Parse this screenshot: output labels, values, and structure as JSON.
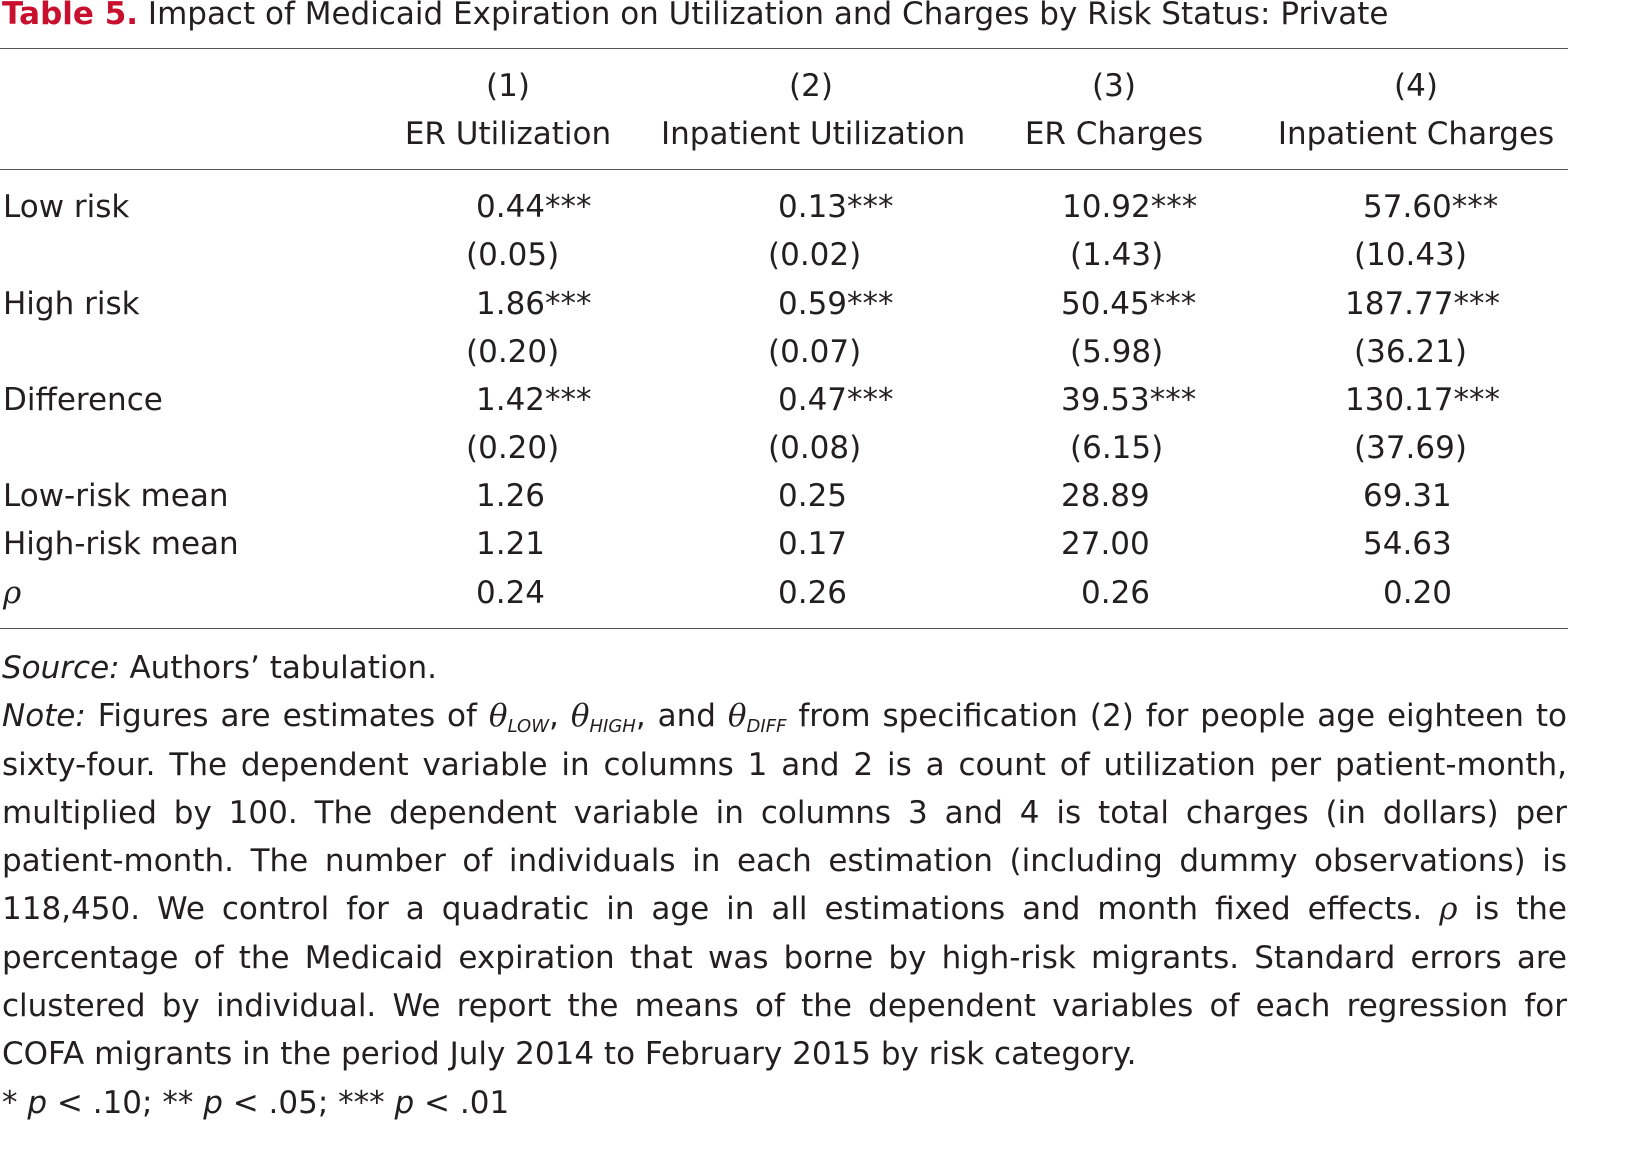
{
  "caption": {
    "label": "Table 5.",
    "title": "Impact of Medicaid Expiration on Utilization and Charges by Risk Status: Private"
  },
  "columns": [
    {
      "number": "(1)",
      "name": "ER Utilization"
    },
    {
      "number": "(2)",
      "name": "Inpatient Utilization"
    },
    {
      "number": "(3)",
      "name": "ER Charges"
    },
    {
      "number": "(4)",
      "name": "Inpatient Charges"
    }
  ],
  "rows": [
    {
      "label": "Low risk",
      "values": [
        "0.44***",
        "0.13***",
        "10.92***",
        "57.60***"
      ]
    },
    {
      "label": "",
      "values": [
        "(0.05)",
        "(0.02)",
        "(1.43)",
        "(10.43)"
      ]
    },
    {
      "label": "High risk",
      "values": [
        "1.86***",
        "0.59***",
        "50.45***",
        "187.77***"
      ]
    },
    {
      "label": "",
      "values": [
        "(0.20)",
        "(0.07)",
        "(5.98)",
        "(36.21)"
      ]
    },
    {
      "label": "Difference",
      "values": [
        "1.42***",
        "0.47***",
        "39.53***",
        "130.17***"
      ]
    },
    {
      "label": "",
      "values": [
        "(0.20)",
        "(0.08)",
        "(6.15)",
        "(37.69)"
      ]
    },
    {
      "label": "Low-risk mean",
      "values": [
        "1.26",
        "0.25",
        "28.89",
        "69.31"
      ]
    },
    {
      "label": "High-risk mean",
      "values": [
        "1.21",
        "0.17",
        "27.00",
        "54.63"
      ]
    },
    {
      "label": "ρ",
      "values": [
        "0.24",
        "0.26",
        "0.26",
        "0.20"
      ]
    }
  ],
  "notes": {
    "source_label": "Source:",
    "source_text": "Authors’ tabulation.",
    "note_label": "Note:",
    "note_lead": "Figures are estimates of",
    "theta": "θ",
    "sub_low": "LOW",
    "sub_high": "HIGH",
    "and": "and",
    "comma": ",",
    "note_mid": "from specification (2) for people age eighteen to sixty-four. The dependent variable in columns 1 and 2 is a count of utilization per patient-month, multiplied by 100. The dependent variable in columns 3 and 4 is total charges (in dollars) per patient-month. The number of individuals in each estimation (including dummy observations) is 118,450. We control for a quadratic in age in all estimations and month fixed effects.",
    "rho": "ρ",
    "note_end": "is the percentage of the Medicaid expiration that was borne by high-risk migrants. Standard errors are clustered by individual. We report the means of the dependent variables of each regression for COFA migrants in the period July 2014 to February 2015 by risk category.",
    "sub_diff": "DIFF",
    "sig_1": "* ",
    "sig_p": "p",
    "sig_2": " < .10; ** ",
    "sig_3": " < .05; *** ",
    "sig_4": " < .01"
  }
}
